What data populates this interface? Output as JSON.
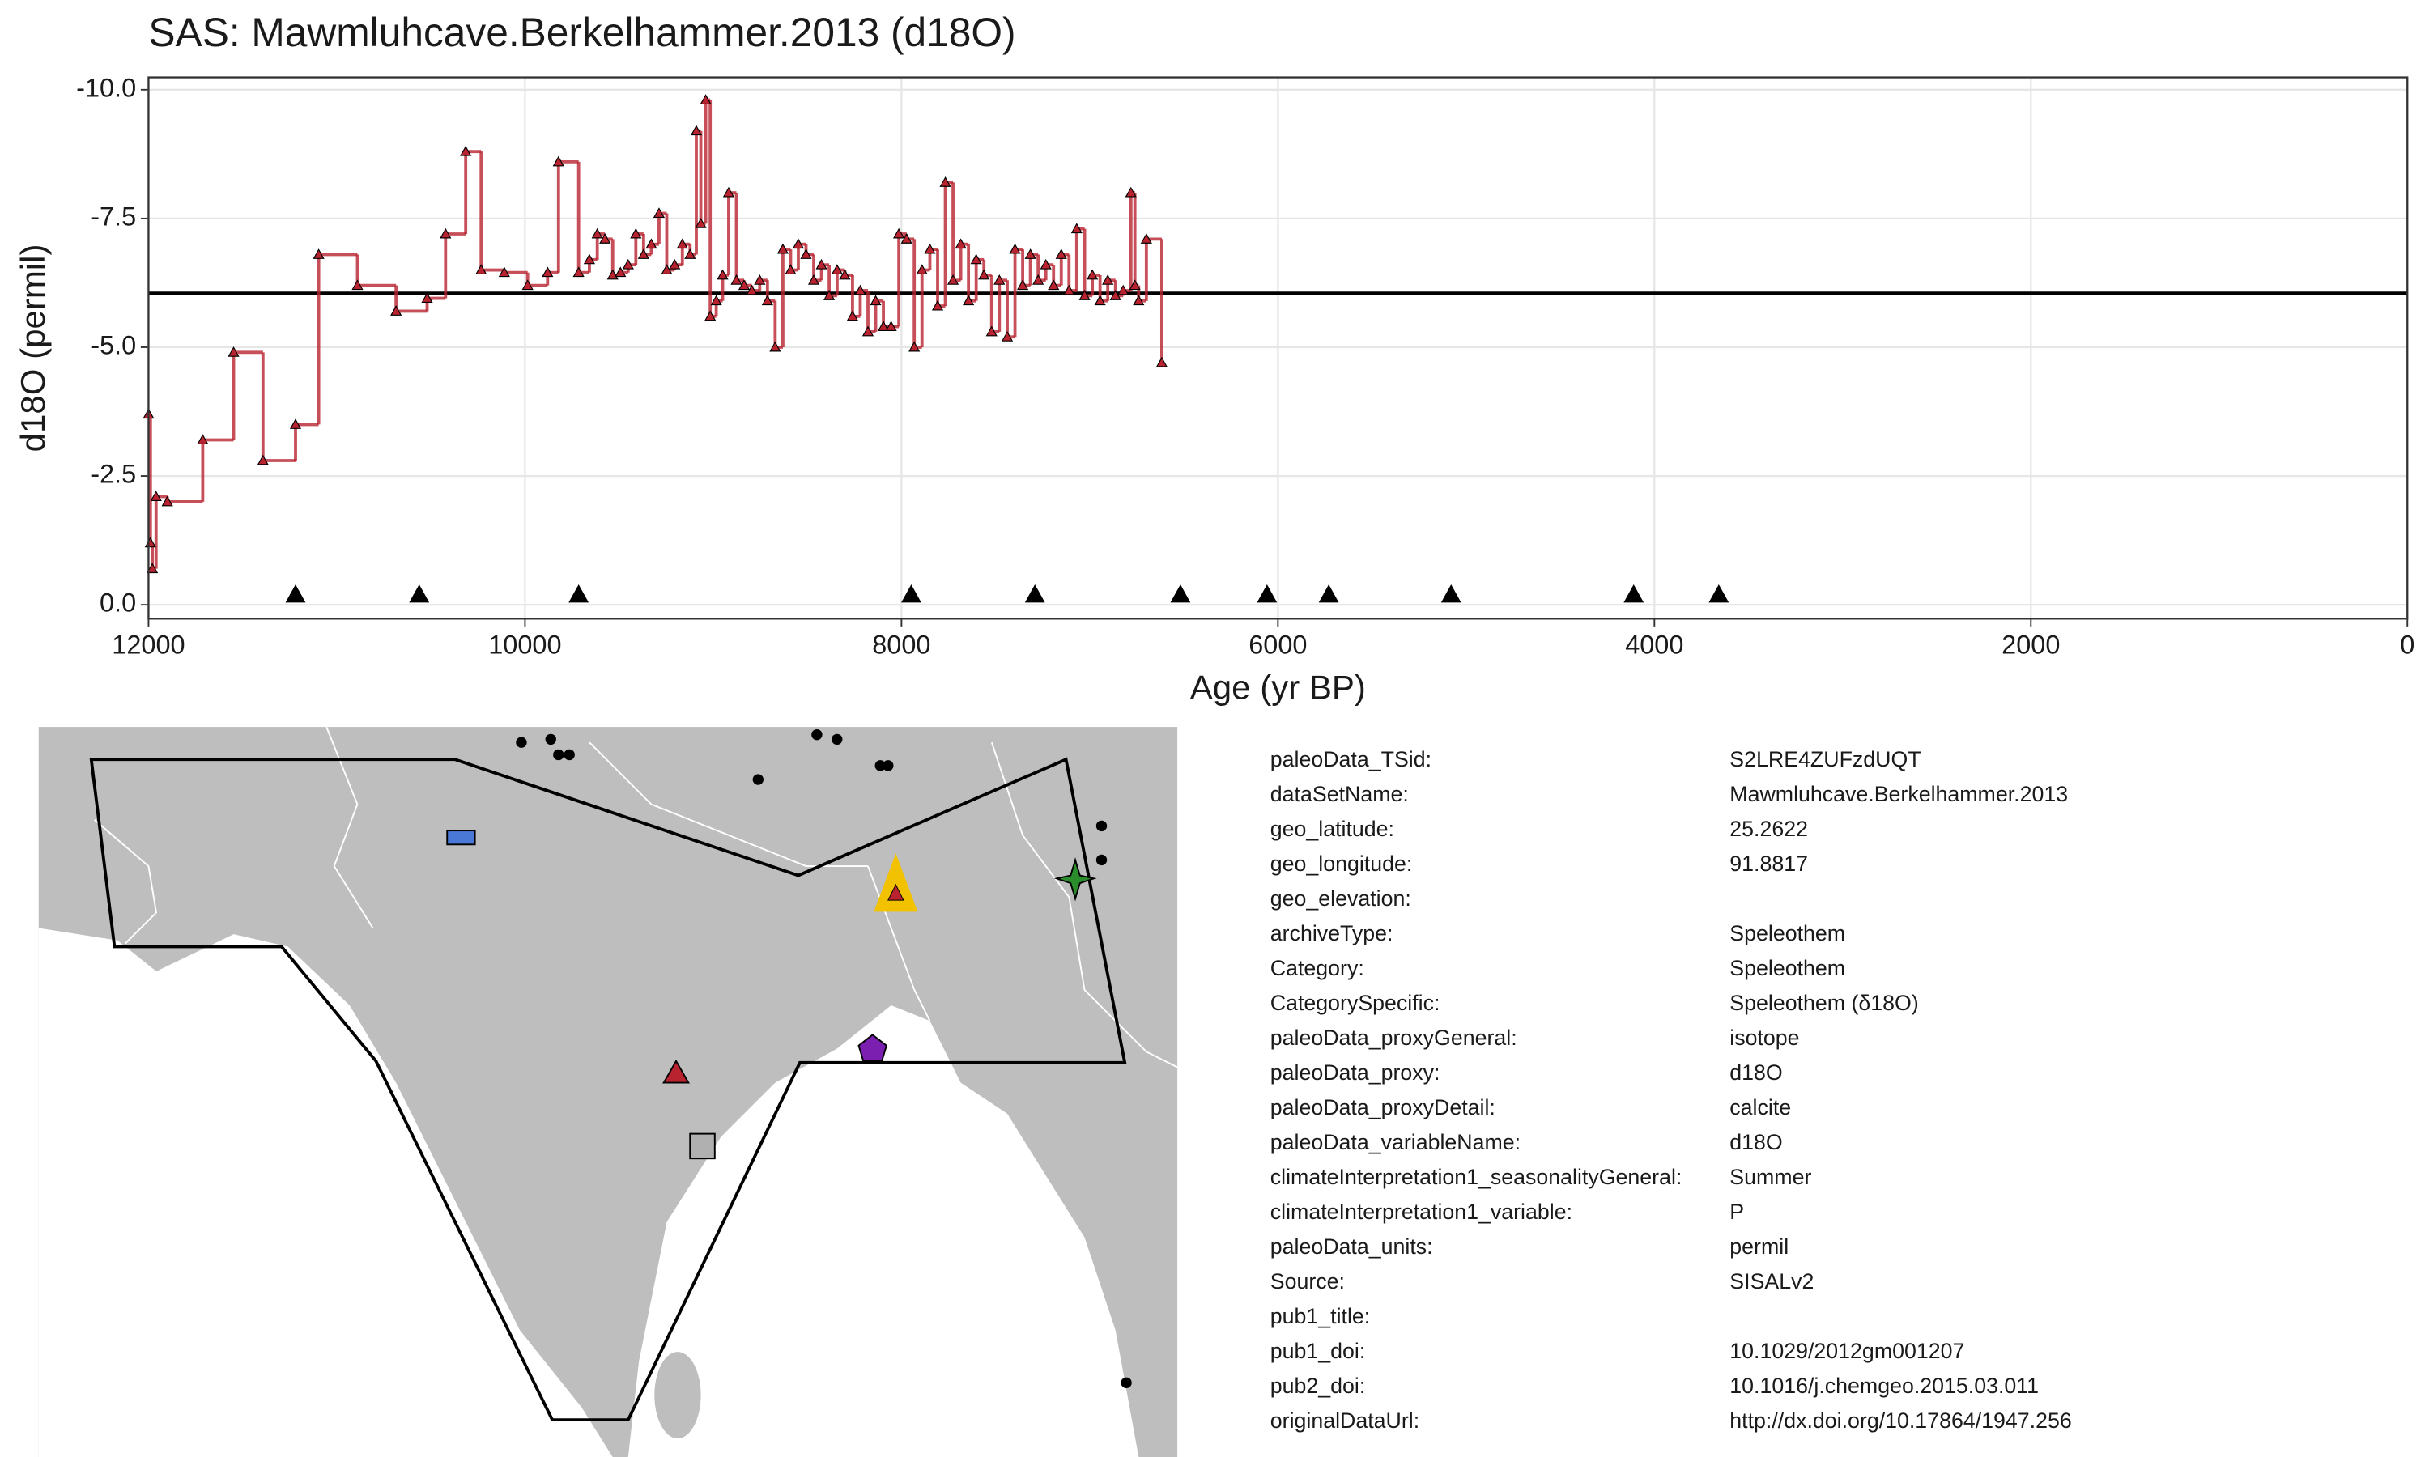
{
  "chart_data": {
    "type": "line",
    "title": "SAS: Mawmluhcave.Berkelhammer.2013 (d18O)",
    "x_label": "Age (yr BP)",
    "y_label": "d18O (permil)",
    "xlim": [
      12000,
      0
    ],
    "xticks": [
      12000,
      10000,
      8000,
      6000,
      4000,
      2000,
      0
    ],
    "ylim": [
      0.27,
      -10.24
    ],
    "yticks": [
      {
        "value": -10,
        "label": "-10.0"
      },
      -7.5,
      {
        "value": -5,
        "label": "-5.0"
      },
      -2.5,
      {
        "value": 0,
        "label": "0.0"
      }
    ],
    "grid": true,
    "hline": -6.05,
    "series": [
      {
        "color": "#b8232f",
        "step": true,
        "x": [
          12000,
          11990,
          11980,
          11960,
          11900,
          11712,
          11548,
          11392,
          11219,
          11096,
          10890,
          10685,
          10520,
          10422,
          10315,
          10233,
          10110,
          9986,
          9880,
          9822,
          9715,
          9658,
          9616,
          9575,
          9534,
          9493,
          9452,
          9411,
          9370,
          9329,
          9288,
          9247,
          9205,
          9164,
          9123,
          9090,
          9066,
          9040,
          9016,
          8984,
          8950,
          8918,
          8877,
          8836,
          8795,
          8753,
          8712,
          8671,
          8630,
          8589,
          8548,
          8507,
          8466,
          8425,
          8384,
          8342,
          8301,
          8260,
          8219,
          8178,
          8137,
          8096,
          8055,
          8014,
          7973,
          7932,
          7891,
          7849,
          7808,
          7767,
          7726,
          7685,
          7644,
          7603,
          7562,
          7521,
          7480,
          7438,
          7397,
          7356,
          7315,
          7274,
          7233,
          7192,
          7151,
          7110,
          7069,
          7027,
          6986,
          6945,
          6904,
          6863,
          6822,
          6781,
          6760,
          6740,
          6699,
          6617
        ],
        "values": [
          -3.7,
          -1.2,
          -0.7,
          -2.1,
          -2.0,
          -3.2,
          -4.9,
          -2.8,
          -3.5,
          -6.8,
          -6.2,
          -5.7,
          -5.95,
          -7.2,
          -8.8,
          -6.5,
          -6.45,
          -6.2,
          -6.45,
          -8.6,
          -6.45,
          -6.7,
          -7.2,
          -7.1,
          -6.4,
          -6.45,
          -6.6,
          -7.2,
          -6.8,
          -7.0,
          -7.6,
          -6.5,
          -6.6,
          -7.0,
          -6.8,
          -9.2,
          -7.4,
          -9.8,
          -5.6,
          -5.9,
          -6.4,
          -8.0,
          -6.3,
          -6.2,
          -6.1,
          -6.3,
          -5.9,
          -5.0,
          -6.9,
          -6.5,
          -7.0,
          -6.8,
          -6.3,
          -6.6,
          -6.0,
          -6.5,
          -6.4,
          -5.6,
          -6.1,
          -5.3,
          -5.9,
          -5.4,
          -5.4,
          -7.2,
          -7.1,
          -5.0,
          -6.5,
          -6.9,
          -5.8,
          -8.2,
          -6.3,
          -7.0,
          -5.9,
          -6.7,
          -6.4,
          -5.3,
          -6.3,
          -5.2,
          -6.9,
          -6.2,
          -6.8,
          -6.3,
          -6.6,
          -6.2,
          -6.8,
          -6.1,
          -7.3,
          -6.0,
          -6.4,
          -5.9,
          -6.3,
          -6.0,
          -6.1,
          -8.0,
          -6.2,
          -5.9,
          -7.1,
          -4.7
        ]
      },
      {
        "color": "#000000",
        "x": [
          11219,
          10562,
          9715,
          7948,
          7291,
          6518,
          6058,
          5730,
          5080,
          4110,
          3658
        ],
        "values": [
          -0.2,
          -0.2,
          -0.2,
          -0.2,
          -0.2,
          -0.2,
          -0.2,
          -0.2,
          -0.2,
          -0.2,
          -0.2
        ]
      }
    ]
  },
  "info_table": {
    "rows": [
      [
        "paleoData_TSid:",
        "S2LRE4ZUFzdUQT"
      ],
      [
        "dataSetName:",
        "Mawmluhcave.Berkelhammer.2013"
      ],
      [
        "geo_latitude:",
        "25.2622"
      ],
      [
        "geo_longitude:",
        "91.8817"
      ],
      [
        "geo_elevation:"
      ],
      [
        "archiveType:",
        "Speleothem"
      ],
      [
        "Category:",
        "Speleothem"
      ],
      [
        "CategorySpecific:",
        "Speleothem (δ18O)"
      ],
      [
        "paleoData_proxyGeneral:",
        "isotope"
      ],
      [
        "paleoData_proxy:",
        "d18O"
      ],
      [
        "paleoData_proxyDetail:",
        "calcite"
      ],
      [
        "paleoData_variableName:",
        "d18O"
      ],
      [
        "climateInterpretation1_seasonalityGeneral:",
        "Summer"
      ],
      [
        "climateInterpretation1_variable:",
        "P"
      ],
      [
        "paleoData_units:",
        "permil"
      ],
      [
        "Source:",
        "SISALv2"
      ],
      [
        "pub1_title:"
      ],
      [
        "pub1_doi:",
        "10.1029/2012gm001207"
      ],
      [
        "pub2_doi:",
        "10.1016/j.chemgeo.2015.03.011"
      ],
      [
        "originalDataUrl:",
        "http://dx.doi.org/10.17864/1947.256"
      ]
    ]
  }
}
